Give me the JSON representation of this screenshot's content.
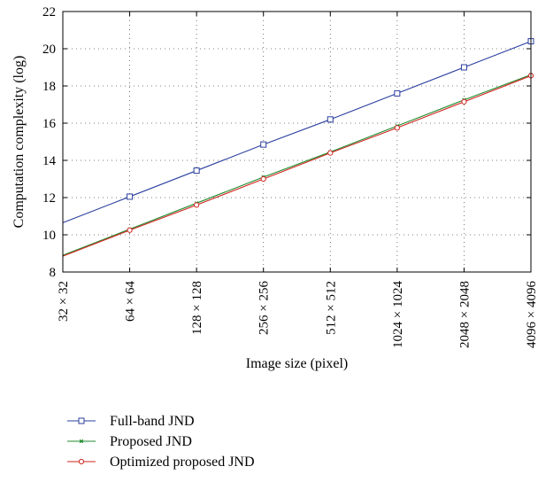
{
  "chart_data": {
    "type": "line",
    "xlabel": "Image size (pixel)",
    "ylabel": "Computation complexity (log)",
    "categories": [
      "32 × 32",
      "64 × 64",
      "128 × 128",
      "256 × 256",
      "512 × 512",
      "1024 × 1024",
      "2048 × 2048",
      "4096 × 4096"
    ],
    "ylim": [
      8,
      22
    ],
    "yticks": [
      8,
      10,
      12,
      14,
      16,
      18,
      20,
      22
    ],
    "grid": true,
    "legend_position": "bottom",
    "series": [
      {
        "name": "Full-band JND",
        "color": "#2b3f9e",
        "marker": "square",
        "values": [
          10.65,
          12.05,
          13.45,
          14.85,
          16.2,
          17.6,
          19.0,
          20.4
        ]
      },
      {
        "name": "Proposed JND",
        "color": "#1f8a2e",
        "marker": "x",
        "values": [
          8.9,
          10.3,
          11.7,
          13.1,
          14.45,
          15.85,
          17.25,
          18.6
        ]
      },
      {
        "name": "Optimized proposed JND",
        "color": "#d0261f",
        "marker": "circle",
        "values": [
          8.85,
          10.25,
          11.6,
          13.0,
          14.4,
          15.75,
          17.15,
          18.55
        ]
      }
    ]
  }
}
